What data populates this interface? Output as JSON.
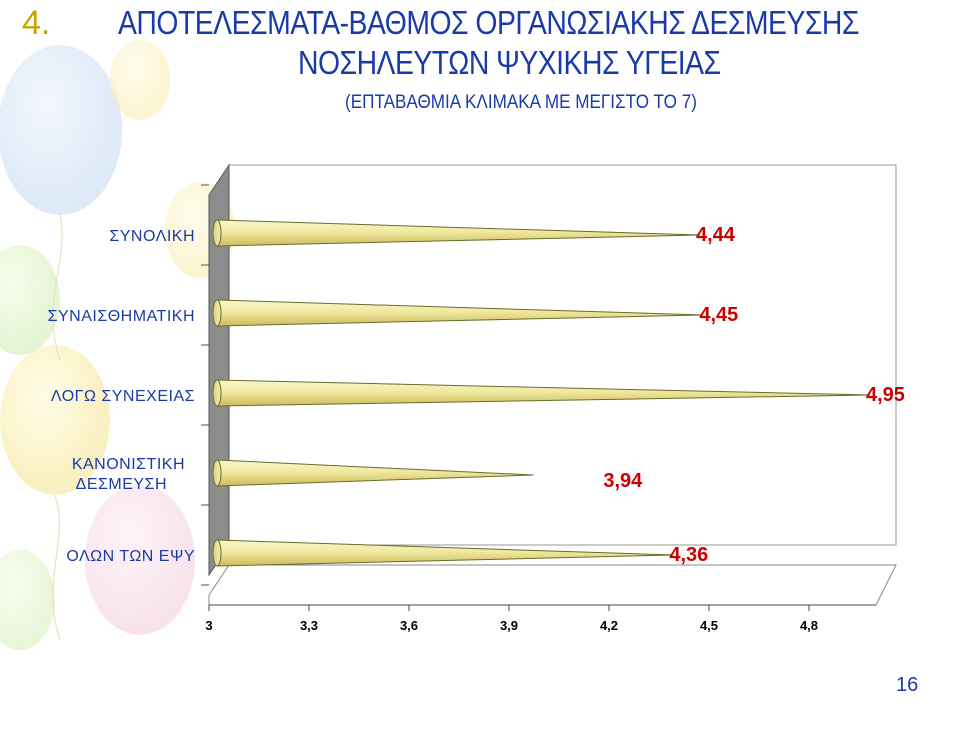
{
  "slide": {
    "number": "4.",
    "title_line1": "ΑΠΟΤΕΛΕΣΜΑΤΑ-ΒΑΘΜΟΣ ΟΡΓΑΝΩΣΙΑΚΗΣ ΔΕΣΜΕΥΣΗΣ",
    "title_line2": "ΝΟΣΗΛΕΥΤΩΝ ΨΥΧΙΚΗΣ ΥΓΕΙΑΣ",
    "subtitle": "(ΕΠΤΑΒΑΘΜΙΑ ΚΛΙΜΑΚΑ ΜΕ ΜΕΓΙΣΤΟ ΤΟ 7)",
    "page_number": "16"
  },
  "colors": {
    "title": "#1a3aa8",
    "number": "#c9a400",
    "category_label": "#1a3aa8",
    "value_label": "#cc0000",
    "bar_fill": "#f3eca6",
    "bar_edge": "#6b6b2a",
    "wall_side": "#8c8c8c"
  },
  "chart_data": {
    "type": "bar",
    "orientation": "horizontal",
    "categories": [
      "ΣΥΝΟΛΙΚΗ",
      "ΣΥΝΑΙΣΘΗΜΑΤΙΚΗ",
      "ΛΟΓΩ ΣΥΝΕΧΕΙΑΣ",
      "ΚΑΝΟΝΙΣΤΙΚΗ ΔΕΣΜΕΥΣΗ",
      "ΟΛΩΝ ΤΩΝ ΕΨΥ"
    ],
    "values": [
      4.44,
      4.45,
      4.95,
      3.94,
      4.36
    ],
    "value_labels": [
      "4,44",
      "4,45",
      "4,95",
      "3,94",
      "4,36"
    ],
    "xlim": [
      3,
      5
    ],
    "x_ticks": [
      3,
      3.3,
      3.6,
      3.9,
      4.2,
      4.5,
      4.8
    ],
    "x_tick_labels": [
      "3",
      "3,3",
      "3,6",
      "3,9",
      "4,2",
      "4,5",
      "4,8"
    ],
    "grid": false,
    "legend": "none",
    "bar_shape": "cone",
    "style": "3d"
  }
}
